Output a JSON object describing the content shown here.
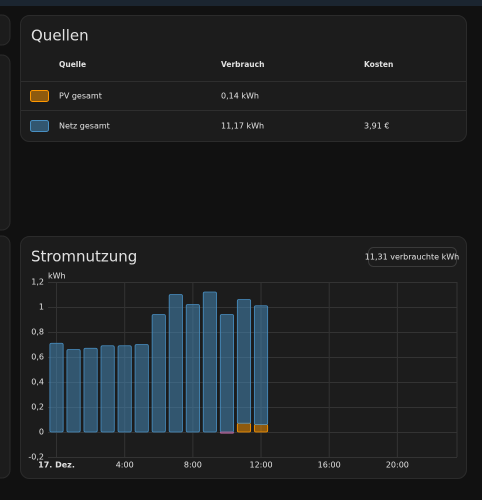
{
  "sources": {
    "title": "Quellen",
    "columns": [
      "Quelle",
      "Verbrauch",
      "Kosten"
    ],
    "rows": [
      {
        "name": "PV gesamt",
        "consumption": "0,14 kWh",
        "color": "#ff9800"
      },
      {
        "name": "Netz gesamt",
        "consumption": "11,17 kWh",
        "cost": "3,91 €",
        "color": "#488fc2"
      }
    ]
  },
  "chart_data": {
    "type": "bar",
    "stacked": true,
    "title": "Stromnutzung",
    "badge": "11,31 verbrauchte kWh",
    "y_label": "kWh",
    "categories": [
      "17. Dez.",
      null,
      null,
      null,
      "4:00",
      null,
      null,
      null,
      "8:00",
      null,
      null,
      null,
      "12:00",
      null,
      null,
      null,
      "16:00",
      null,
      null,
      null,
      "20:00",
      null,
      null,
      null
    ],
    "series": [
      {
        "color": "#ff9800",
        "values": [
          null,
          null,
          null,
          null,
          null,
          null,
          null,
          null,
          null,
          null,
          null,
          0.07,
          0.06,
          null,
          null,
          null,
          null,
          null,
          null,
          null,
          null,
          null,
          null,
          null
        ]
      },
      {
        "color": "#488fc2",
        "values": [
          0.71,
          0.66,
          0.67,
          0.69,
          0.69,
          0.7,
          0.94,
          1.1,
          1.02,
          1.12,
          0.94,
          0.99,
          0.95,
          null,
          null,
          null,
          null,
          null,
          null,
          null,
          null,
          null,
          null,
          null
        ]
      },
      {
        "color": "#b1649a",
        "values": [
          null,
          null,
          null,
          null,
          null,
          null,
          null,
          null,
          null,
          null,
          -0.01,
          null,
          null,
          null,
          null,
          null,
          null,
          null,
          null,
          null,
          null,
          null,
          null,
          null
        ]
      }
    ],
    "ylim": [
      -0.2,
      1.2
    ],
    "yticks": [
      {
        "value": -0.2,
        "label": "-0,2"
      },
      0,
      {
        "value": 0.2,
        "label": "0,2"
      },
      {
        "value": 0.4,
        "label": "0,4"
      },
      {
        "value": 0.6,
        "label": "0,6"
      },
      {
        "value": 0.8,
        "label": "0,8"
      },
      1,
      {
        "value": 1.2,
        "label": "1,2"
      }
    ],
    "grid": true
  }
}
